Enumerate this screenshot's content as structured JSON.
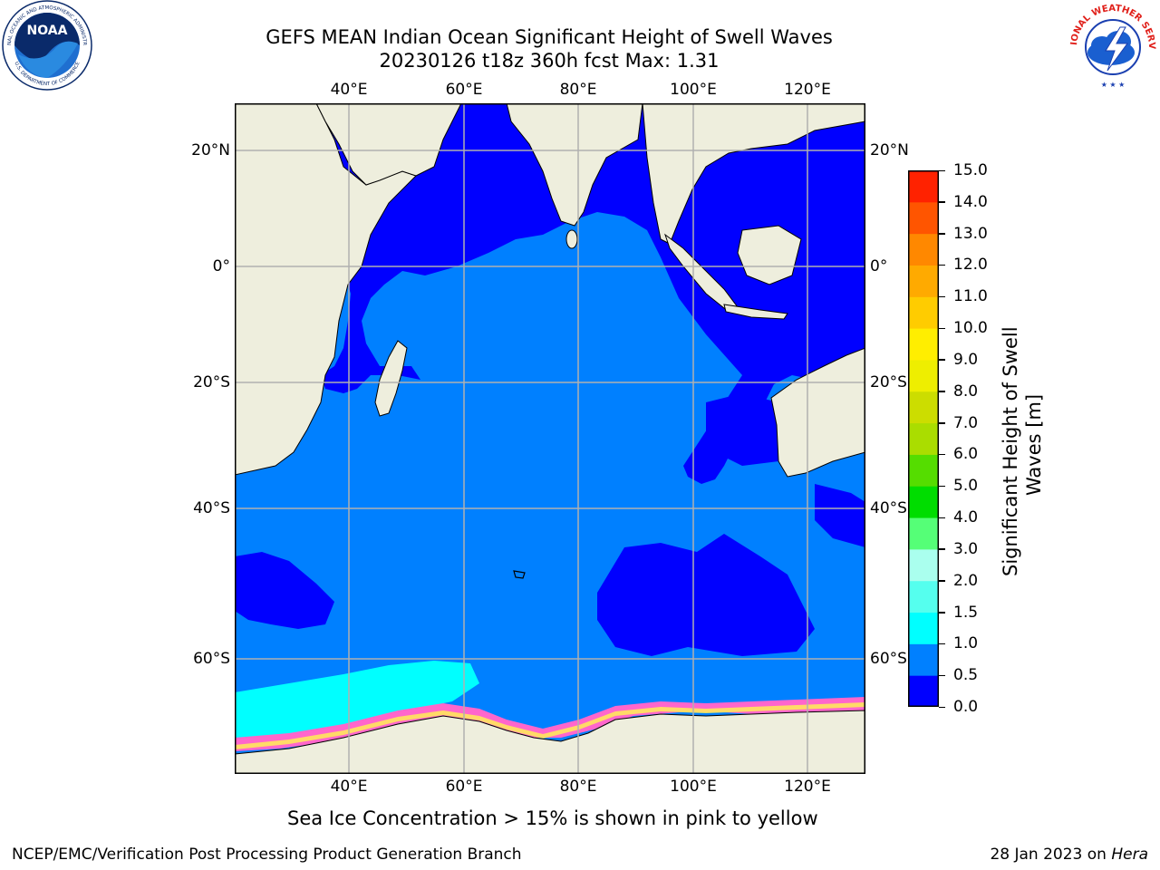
{
  "title": {
    "line1": "GEFS MEAN Indian Ocean Significant Height of Swell Waves",
    "line2": "20230126 t18z 360h fcst   Max: 1.31"
  },
  "map": {
    "lon_labels_top": [
      "40°E",
      "60°E",
      "80°E",
      "100°E",
      "120°E"
    ],
    "lon_labels_bottom": [
      "40°E",
      "60°E",
      "80°E",
      "100°E",
      "120°E"
    ],
    "lat_labels_left": [
      "20°N",
      "0°",
      "20°S",
      "40°S",
      "60°S"
    ],
    "lat_labels_right": [
      "20°N",
      "0°",
      "20°S",
      "40°S",
      "60°S"
    ],
    "colors": {
      "ocean_light": "#0080ff",
      "ocean_dark": "#0000ff",
      "cyan": "#00ffff",
      "land": "#eeeedd",
      "ice": "#ffffff",
      "grid": "#b0b0b0"
    }
  },
  "colorbar": {
    "label": "Significant Height of Swell Waves [m]",
    "label_line1": "Significant Height of Swell",
    "label_line2": "Waves [m]",
    "ticks": [
      "0.0",
      "0.5",
      "1.0",
      "1.5",
      "2.0",
      "3.0",
      "4.0",
      "5.0",
      "6.0",
      "7.0",
      "8.0",
      "9.0",
      "10.0",
      "11.0",
      "12.0",
      "13.0",
      "14.0",
      "15.0"
    ],
    "colors": [
      "#0000ff",
      "#0080ff",
      "#00ffff",
      "#55ffee",
      "#aaffee",
      "#55ff77",
      "#00dd00",
      "#55dd00",
      "#aadd00",
      "#ccdd00",
      "#eeee00",
      "#ffee00",
      "#ffcc00",
      "#ffaa00",
      "#ff8800",
      "#ff5500",
      "#ff2200",
      "#ff0000"
    ]
  },
  "note": "Sea Ice Concentration > 15% is shown in pink to yellow",
  "footer": {
    "left": "NCEP/EMC/Verification Post Processing Product Generation Branch",
    "right_date": "28 Jan 2023 on ",
    "right_machine": "Hera"
  },
  "logos": {
    "left_name": "noaa-logo",
    "left_text": "NOAA",
    "left_ring_text": "NATIONAL OCEANIC AND ATMOSPHERIC ADMINISTRATION",
    "left_ring_text_bottom": "U.S. DEPARTMENT OF COMMERCE",
    "right_name": "nws-logo",
    "right_ring_text": "NATIONAL WEATHER SERVICE"
  }
}
